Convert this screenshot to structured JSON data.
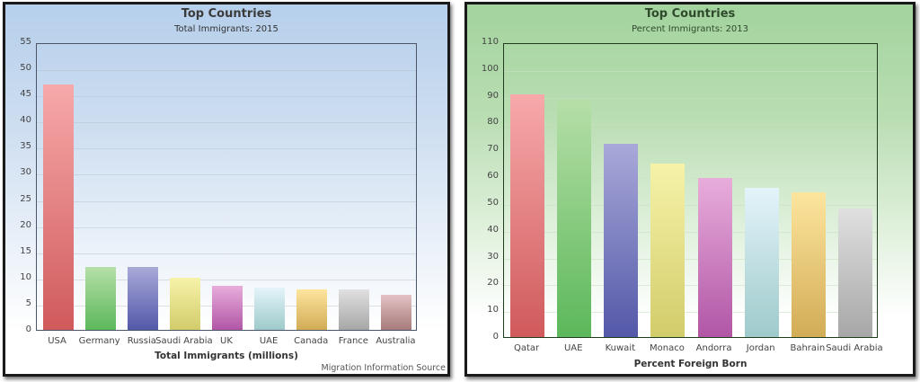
{
  "chart_data": [
    {
      "type": "bar",
      "title": "Top Countries",
      "subtitle": "Total Immigrants:  2015",
      "xlabel": "Total Immigrants (millions)",
      "ylabel": "",
      "ylim": [
        0,
        55
      ],
      "yticks": [
        0,
        5,
        10,
        15,
        20,
        25,
        30,
        35,
        40,
        45,
        50,
        55
      ],
      "grid": true,
      "legend": "none",
      "source": "Migration Information Source",
      "categories": [
        "USA",
        "Germany",
        "Russia",
        "Saudi Arabia",
        "UK",
        "UAE",
        "Canada",
        "France",
        "Australia"
      ],
      "values": [
        47,
        12,
        12,
        10,
        8.5,
        8,
        7.8,
        7.8,
        6.7
      ],
      "colors": [
        [
          "#f7a9aa",
          "#d05a5c"
        ],
        [
          "#b6dfa8",
          "#5cb85a"
        ],
        [
          "#a9a9d9",
          "#5358a8"
        ],
        [
          "#f6f3a9",
          "#d2cc6a"
        ],
        [
          "#e8addb",
          "#b156a6"
        ],
        [
          "#e4f4fa",
          "#9ecacb"
        ],
        [
          "#fde59e",
          "#d2ac56"
        ],
        [
          "#e0e0e0",
          "#a7a7a7"
        ],
        [
          "#e3c3c4",
          "#a87a7b"
        ]
      ]
    },
    {
      "type": "bar",
      "title": "Top Countries",
      "subtitle": "Percent Immigrants:  2013",
      "xlabel": "Percent Foreign Born",
      "ylabel": "",
      "ylim": [
        0,
        110
      ],
      "yticks": [
        0,
        10,
        20,
        30,
        40,
        50,
        60,
        70,
        80,
        90,
        100,
        110
      ],
      "grid": true,
      "legend": "none",
      "categories": [
        "Qatar",
        "UAE",
        "Kuwait",
        "Monaco",
        "Andorra",
        "Jordan",
        "Bahrain",
        "Saudi Arabia"
      ],
      "values": [
        90.6,
        88.5,
        72,
        64.7,
        59.4,
        55.7,
        54,
        48
      ],
      "colors": [
        [
          "#f7a9aa",
          "#d05a5c"
        ],
        [
          "#b6dfa8",
          "#5cb85a"
        ],
        [
          "#a9a9d9",
          "#5358a8"
        ],
        [
          "#f6f3a9",
          "#d2cc6a"
        ],
        [
          "#e8addb",
          "#b156a6"
        ],
        [
          "#e4f4fa",
          "#9ecacb"
        ],
        [
          "#fde59e",
          "#d2ac56"
        ],
        [
          "#e0e0e0",
          "#a7a7a7"
        ]
      ]
    }
  ]
}
